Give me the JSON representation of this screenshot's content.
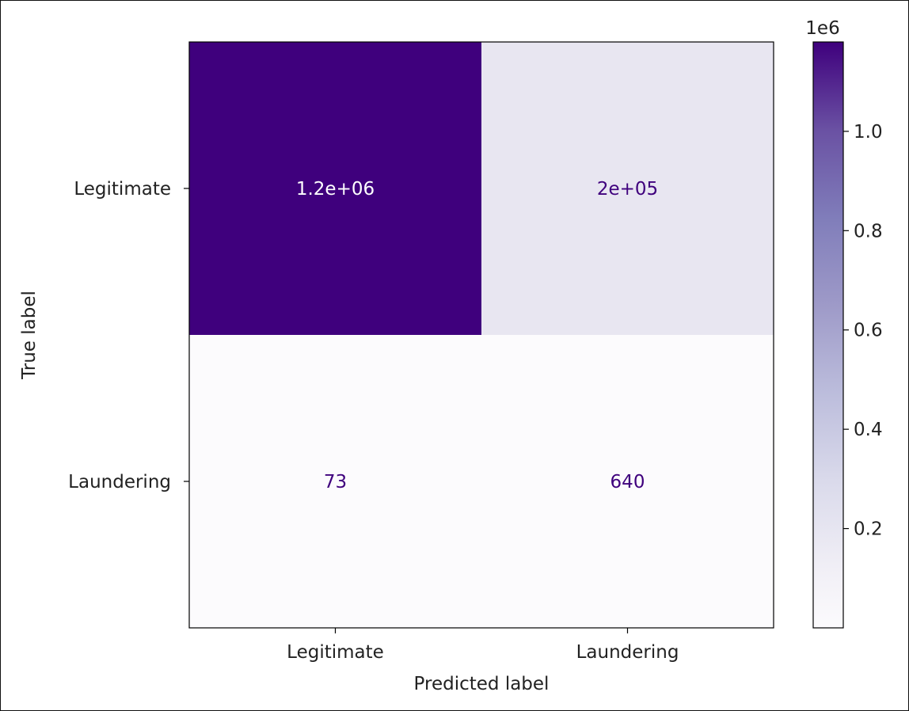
{
  "chart_data": {
    "type": "heatmap",
    "subtype": "confusion-matrix",
    "title": "",
    "xlabel": "Predicted label",
    "ylabel": "True label",
    "x_categories": [
      "Legitimate",
      "Laundering"
    ],
    "y_categories": [
      "Legitimate",
      "Laundering"
    ],
    "values": [
      [
        1180000,
        200000
      ],
      [
        73,
        640
      ]
    ],
    "cell_labels": [
      [
        "1.2e+06",
        "2e+05"
      ],
      [
        "73",
        "640"
      ]
    ],
    "colormap": "Purples",
    "colormap_low": "#fcfbfd",
    "colormap_high": "#3f007d",
    "text_dark_color": "#3f007d",
    "text_light_color": "#ffffff",
    "colorbar": {
      "range": [
        0,
        1180000
      ],
      "ticks": [
        200000,
        400000,
        600000,
        800000,
        1000000
      ],
      "tick_labels": [
        "0.2",
        "0.4",
        "0.6",
        "0.8",
        "1.0"
      ],
      "offset_label": "1e6"
    },
    "grid": false
  }
}
